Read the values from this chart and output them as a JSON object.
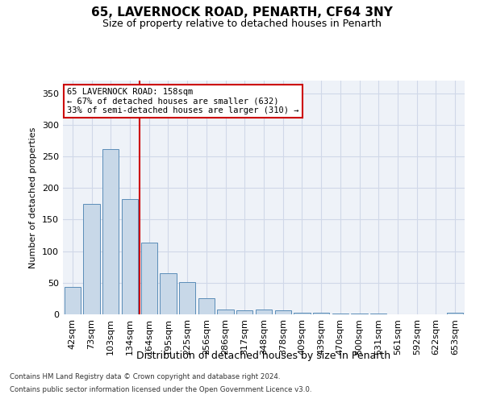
{
  "title_line1": "65, LAVERNOCK ROAD, PENARTH, CF64 3NY",
  "title_line2": "Size of property relative to detached houses in Penarth",
  "xlabel": "Distribution of detached houses by size in Penarth",
  "ylabel": "Number of detached properties",
  "footer_line1": "Contains HM Land Registry data © Crown copyright and database right 2024.",
  "footer_line2": "Contains public sector information licensed under the Open Government Licence v3.0.",
  "categories": [
    "42sqm",
    "73sqm",
    "103sqm",
    "134sqm",
    "164sqm",
    "195sqm",
    "225sqm",
    "256sqm",
    "286sqm",
    "317sqm",
    "348sqm",
    "378sqm",
    "409sqm",
    "439sqm",
    "470sqm",
    "500sqm",
    "531sqm",
    "561sqm",
    "592sqm",
    "622sqm",
    "653sqm"
  ],
  "values": [
    44,
    175,
    262,
    183,
    113,
    65,
    51,
    25,
    8,
    6,
    8,
    6,
    3,
    3,
    1,
    1,
    1,
    0,
    0,
    0,
    3
  ],
  "bar_color": "#c8d8e8",
  "bar_edge_color": "#5b8db8",
  "grid_color": "#d0d8e8",
  "background_color": "#eef2f8",
  "vline_color": "#cc0000",
  "annotation_title": "65 LAVERNOCK ROAD: 158sqm",
  "annotation_line2": "← 67% of detached houses are smaller (632)",
  "annotation_line3": "33% of semi-detached houses are larger (310) →",
  "annotation_box_color": "#ffffff",
  "annotation_box_edge": "#cc0000",
  "ylim": [
    0,
    370
  ],
  "yticks": [
    0,
    50,
    100,
    150,
    200,
    250,
    300,
    350
  ]
}
